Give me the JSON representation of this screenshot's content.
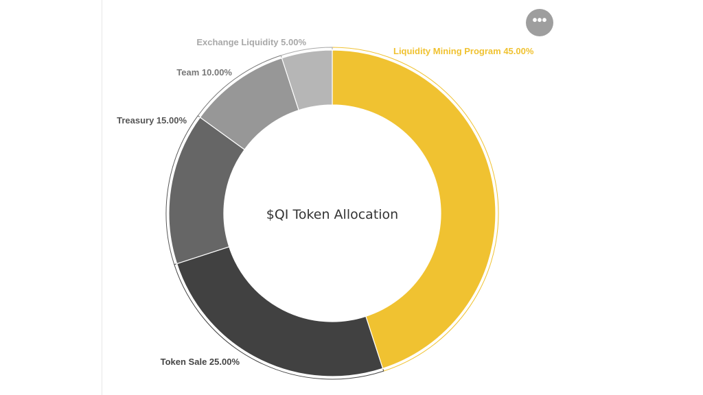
{
  "chart_data": {
    "type": "pie",
    "variant": "donut",
    "title": "$QI Token Allocation",
    "slices": [
      {
        "name": "Liquidity Mining Program",
        "value": 45.0,
        "label": "Liquidity Mining Program 45.00%",
        "color": "#F0C231",
        "label_color": "#F0C231"
      },
      {
        "name": "Token Sale",
        "value": 25.0,
        "label": "Token Sale 25.00%",
        "color": "#414141",
        "label_color": "#444444"
      },
      {
        "name": "Treasury",
        "value": 15.0,
        "label": "Treasury 15.00%",
        "color": "#666666",
        "label_color": "#555555"
      },
      {
        "name": "Team",
        "value": 10.0,
        "label": "Team 10.00%",
        "color": "#979797",
        "label_color": "#777777"
      },
      {
        "name": "Exchange Liquidity",
        "value": 5.0,
        "label": "Exchange Liquidity 5.00%",
        "color": "#B6B6B6",
        "label_color": "#A8A8A8"
      }
    ]
  },
  "menu": {
    "icon": "more-horizontal-icon",
    "label": "•••"
  }
}
